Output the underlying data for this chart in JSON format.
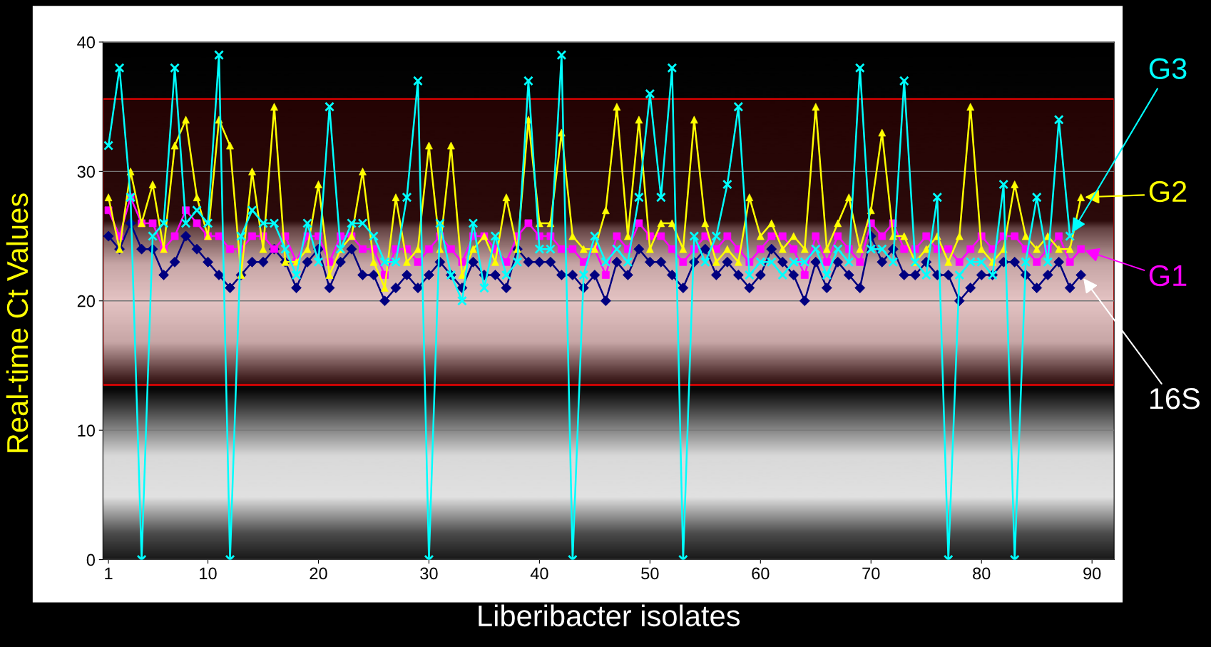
{
  "chart_data": {
    "type": "line",
    "xlabel": "Liberibacter isolates",
    "ylabel": "Real-time Ct Values",
    "x": [
      1,
      2,
      3,
      4,
      5,
      6,
      7,
      8,
      9,
      10,
      11,
      12,
      13,
      14,
      15,
      16,
      17,
      18,
      19,
      20,
      21,
      22,
      23,
      24,
      25,
      26,
      27,
      28,
      29,
      30,
      31,
      32,
      33,
      34,
      35,
      36,
      37,
      38,
      39,
      40,
      41,
      42,
      43,
      44,
      45,
      46,
      47,
      48,
      49,
      50,
      51,
      52,
      53,
      54,
      55,
      56,
      57,
      58,
      59,
      60,
      61,
      62,
      63,
      64,
      65,
      66,
      67,
      68,
      69,
      70,
      71,
      72,
      73,
      74,
      75,
      76,
      77,
      78,
      79,
      80,
      81,
      82,
      83,
      84,
      85,
      86,
      87,
      88,
      89
    ],
    "series": [
      {
        "name": "16S",
        "color": "#000080",
        "marker": "diamond",
        "values": [
          25,
          24,
          26,
          24,
          24,
          22,
          23,
          25,
          24,
          23,
          22,
          21,
          22,
          23,
          23,
          24,
          23,
          21,
          23,
          24,
          21,
          23,
          24,
          22,
          22,
          20,
          21,
          22,
          21,
          22,
          23,
          22,
          21,
          23,
          22,
          22,
          21,
          24,
          23,
          23,
          23,
          22,
          22,
          21,
          22,
          20,
          23,
          22,
          24,
          23,
          23,
          22,
          21,
          23,
          24,
          22,
          23,
          22,
          21,
          22,
          24,
          23,
          22,
          20,
          23,
          21,
          23,
          22,
          21,
          25,
          23,
          24,
          22,
          22,
          23,
          22,
          22,
          20,
          21,
          22,
          22,
          23,
          23,
          22,
          21,
          22,
          23,
          21,
          22
        ]
      },
      {
        "name": "G1",
        "color": "#ff00ff",
        "marker": "square",
        "values": [
          27,
          25,
          28,
          26,
          26,
          24,
          25,
          27,
          26,
          25,
          25,
          24,
          24,
          25,
          25,
          24,
          25,
          23,
          25,
          25,
          23,
          25,
          25,
          24,
          24,
          22,
          24,
          24,
          23,
          24,
          25,
          24,
          23,
          25,
          25,
          24,
          23,
          25,
          26,
          25,
          25,
          24,
          24,
          23,
          24,
          22,
          25,
          24,
          26,
          25,
          25,
          24,
          23,
          24,
          25,
          24,
          25,
          24,
          23,
          24,
          25,
          25,
          24,
          22,
          25,
          23,
          25,
          24,
          23,
          26,
          25,
          26,
          24,
          24,
          25,
          24,
          24,
          23,
          24,
          25,
          24,
          25,
          25,
          24,
          23,
          24,
          25,
          23,
          24
        ]
      },
      {
        "name": "G2",
        "color": "#ffff00",
        "marker": "triangle",
        "values": [
          28,
          24,
          30,
          26,
          29,
          24,
          32,
          34,
          28,
          25,
          34,
          32,
          22,
          30,
          24,
          35,
          23,
          23,
          24,
          29,
          22,
          24,
          25,
          30,
          23,
          21,
          28,
          23,
          24,
          32,
          24,
          32,
          22,
          24,
          25,
          23,
          28,
          24,
          34,
          26,
          26,
          33,
          25,
          24,
          24,
          27,
          35,
          25,
          34,
          24,
          26,
          26,
          24,
          34,
          26,
          23,
          24,
          23,
          28,
          25,
          26,
          24,
          25,
          24,
          35,
          24,
          26,
          28,
          24,
          27,
          33,
          25,
          25,
          23,
          24,
          25,
          23,
          25,
          35,
          24,
          23,
          24,
          29,
          25,
          24,
          25,
          24,
          24,
          28
        ]
      },
      {
        "name": "G3",
        "color": "#00ffff",
        "marker": "cross",
        "values": [
          32,
          38,
          28,
          0,
          25,
          26,
          38,
          26,
          27,
          26,
          39,
          0,
          25,
          27,
          26,
          26,
          24,
          22,
          26,
          23,
          35,
          24,
          26,
          26,
          25,
          23,
          23,
          28,
          37,
          0,
          26,
          22,
          20,
          26,
          21,
          25,
          22,
          23,
          37,
          24,
          24,
          39,
          0,
          22,
          25,
          23,
          24,
          23,
          28,
          36,
          28,
          38,
          0,
          25,
          23,
          25,
          29,
          35,
          22,
          23,
          23,
          22,
          23,
          23,
          24,
          22,
          24,
          23,
          38,
          24,
          24,
          23,
          37,
          23,
          22,
          28,
          0,
          22,
          23,
          23,
          22,
          29,
          0,
          23,
          28,
          23,
          34,
          25,
          null
        ]
      }
    ],
    "xlim": [
      0.5,
      92
    ],
    "xticks": [
      1,
      10,
      20,
      30,
      40,
      50,
      60,
      70,
      80,
      90
    ],
    "ylim": [
      0,
      40
    ],
    "yticks": [
      0,
      10,
      20,
      30,
      40
    ],
    "grid": "y",
    "line_style": "solid",
    "legend": "right",
    "bands": [
      {
        "axis": "y",
        "from": 13.5,
        "to": 35.6,
        "label": null,
        "color": "#ff0000"
      }
    ]
  }
}
